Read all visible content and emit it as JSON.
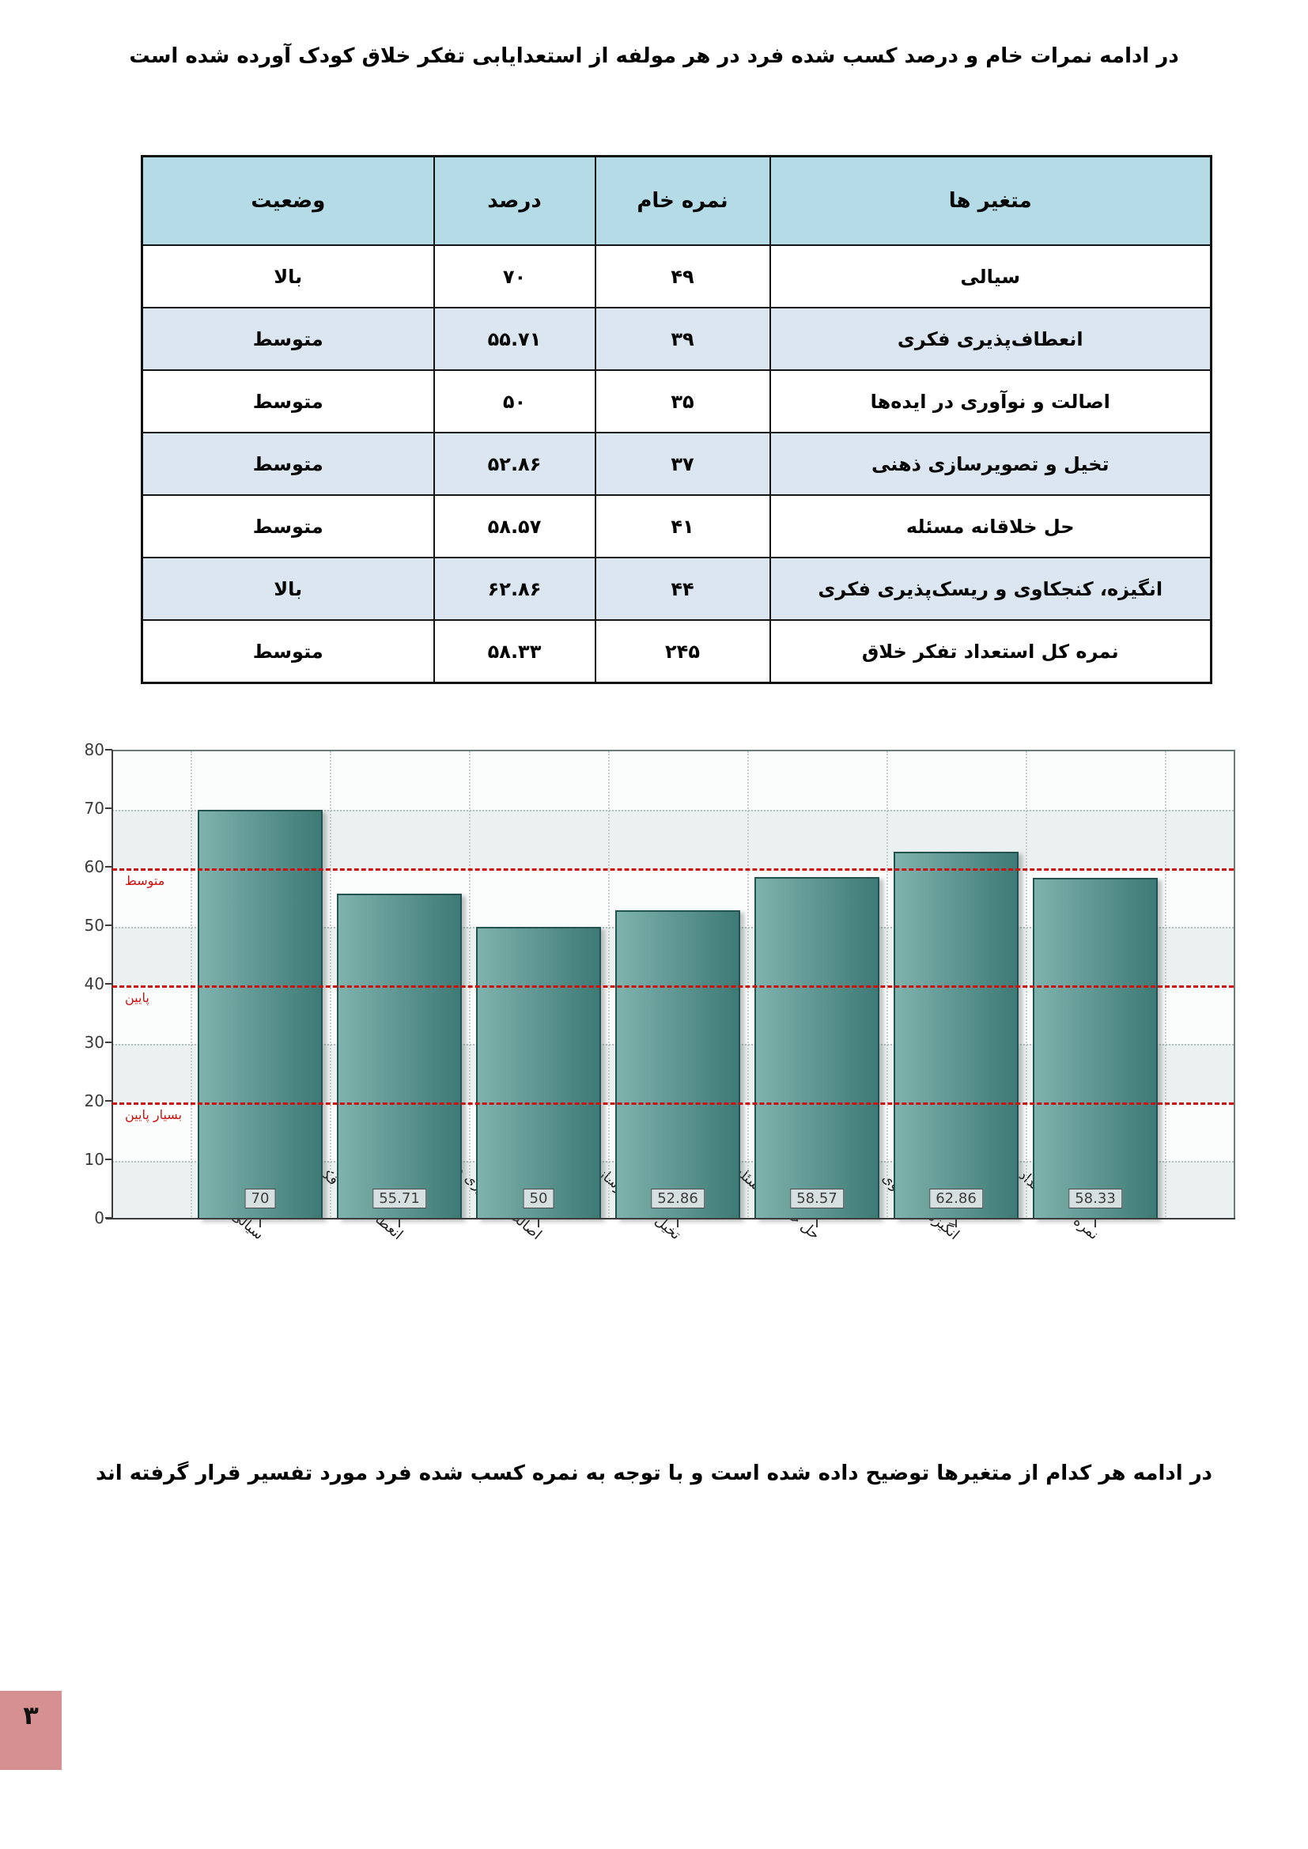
{
  "page": {
    "title_text": "در ادامه نمرات خام و درصد کسب شده فرد در هر مولفه از استعدایابی تفکر خلاق کودک آورده شده است",
    "footer_text": "در ادامه هر کدام از متغیرها توضیح داده شده است و با توجه به نمره کسب شده فرد مورد تفسیر قرار گرفته اند",
    "page_number": "۳"
  },
  "colors": {
    "table_header_bg": "#b5dbe6",
    "table_alt_row_bg": "#dce6f1",
    "band_light": "#fbfdfd",
    "band_mint": "#ebf1f0",
    "bar_light": "#7fb2ad",
    "bar_dark": "#3e7a75",
    "bar_border": "#24534f",
    "ref_line": "#cc1111",
    "badge_bg": "#d69091"
  },
  "table": {
    "headers": [
      "متغیر ها",
      "نمره خام",
      "درصد",
      "وضعیت"
    ],
    "rows": [
      {
        "variable": "سیالی",
        "raw_score": "۴۹",
        "percent": "۷۰",
        "status": "بالا"
      },
      {
        "variable": "انعطاف‌پذیری فکری",
        "raw_score": "۳۹",
        "percent": "۵۵.۷۱",
        "status": "متوسط"
      },
      {
        "variable": "اصالت و نوآوری در ایده‌ها",
        "raw_score": "۳۵",
        "percent": "۵۰",
        "status": "متوسط"
      },
      {
        "variable": "تخیل و تصویرسازی ذهنی",
        "raw_score": "۳۷",
        "percent": "۵۲.۸۶",
        "status": "متوسط"
      },
      {
        "variable": "حل خلاقانه مسئله",
        "raw_score": "۴۱",
        "percent": "۵۸.۵۷",
        "status": "متوسط"
      },
      {
        "variable": "انگیزه، کنجکاوی و ریسک‌پذیری فکری",
        "raw_score": "۴۴",
        "percent": "۶۲.۸۶",
        "status": "بالا"
      },
      {
        "variable": "نمره کل استعداد تفکر خلاق",
        "raw_score": "۲۴۵",
        "percent": "۵۸.۳۳",
        "status": "متوسط"
      }
    ]
  },
  "chart_data": {
    "type": "bar",
    "categories": [
      "سیالی",
      "انعطاف‌پذیری فکری",
      "اصالت و نوآوری در ایده‌ها",
      "تخیل و تصویرسازی ذهنی",
      "حل خلاقانه مسئله",
      "انگیزه، کنجکاوی و ریسک‌پذیری فکری",
      "نمره کل استعداد تفکر خلاق"
    ],
    "values": [
      70,
      55.71,
      50,
      52.86,
      58.57,
      62.86,
      58.33
    ],
    "value_labels": [
      "70",
      "55.71",
      "50",
      "52.86",
      "58.57",
      "62.86",
      "58.33"
    ],
    "title": "",
    "xlabel": "",
    "ylabel": "",
    "ylim": [
      0,
      80
    ],
    "yticks": [
      0,
      10,
      20,
      30,
      40,
      50,
      60,
      70,
      80
    ],
    "reference_lines": [
      {
        "y": 60,
        "label": "متوسط"
      },
      {
        "y": 40,
        "label": "پایین"
      },
      {
        "y": 20,
        "label": "بسیار پایین"
      }
    ],
    "grid": "horizontal dotted at 10,30,50,70; red dashed at 20,40,60; faint vertical dotted between bars",
    "legend_position": "none"
  }
}
